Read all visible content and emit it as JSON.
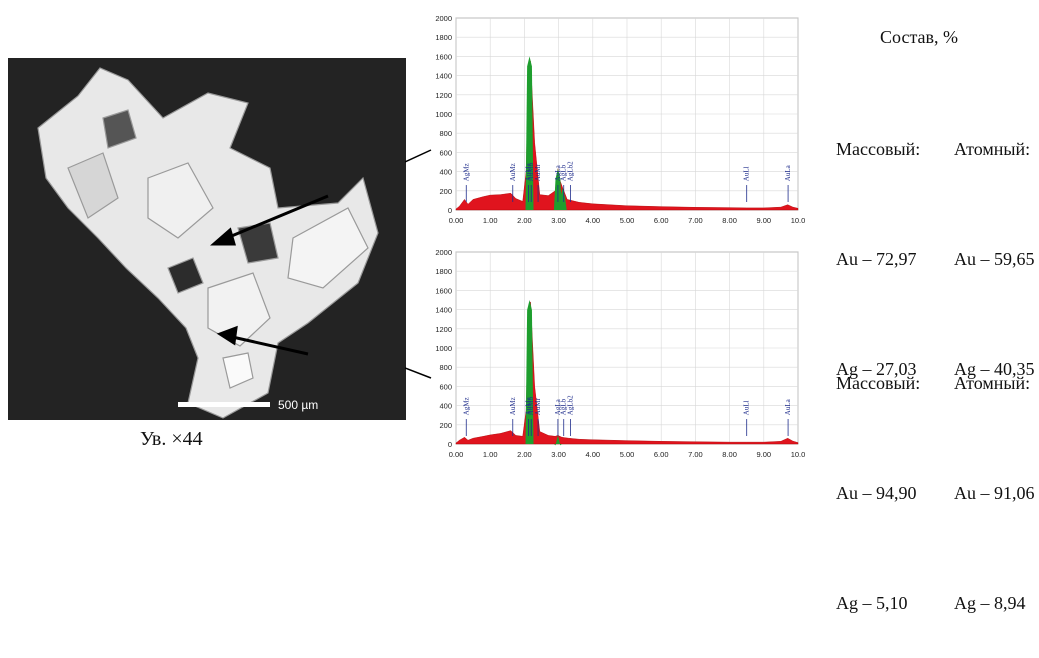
{
  "micrograph": {
    "scalebar_label": "500 µm",
    "caption": "Ув. ×44"
  },
  "composition": {
    "title": "Состав, %",
    "header": [
      "Массовый:",
      "Атомный:"
    ],
    "spectrum1": [
      [
        "Au – 72,97",
        "Au – 59,65"
      ],
      [
        "Ag – 27,03",
        "Ag – 40,35"
      ]
    ],
    "spectrum2": [
      [
        "Au – 94,90",
        "Au – 91,06"
      ],
      [
        "Ag – 5,10",
        "Ag – 8,94"
      ]
    ]
  },
  "colors": {
    "spectrum_fill": "#e0141e",
    "peak_fill": "#1e9e2e",
    "peak_label": "#1f2d8c",
    "background_micro": "#232323"
  },
  "chart_data": [
    {
      "type": "area",
      "xlim": [
        0.0,
        10.0
      ],
      "ylim": [
        0,
        2000
      ],
      "x_ticks": [
        "0.00",
        "1.00",
        "2.00",
        "3.00",
        "4.00",
        "5.00",
        "6.00",
        "7.00",
        "8.00",
        "9.00",
        "10.0"
      ],
      "y_ticks": [
        "0",
        "200",
        "400",
        "600",
        "800",
        "1000",
        "1200",
        "1400",
        "1600",
        "1800",
        "2000"
      ],
      "peak_labels": [
        {
          "label": "AgMz",
          "x": 0.3
        },
        {
          "label": "AuMz",
          "x": 1.66
        },
        {
          "label": "AuMa",
          "x": 2.12
        },
        {
          "label": "AuMb",
          "x": 2.2
        },
        {
          "label": "AuMr",
          "x": 2.4
        },
        {
          "label": "AgLa",
          "x": 2.98
        },
        {
          "label": "AgLb",
          "x": 3.15
        },
        {
          "label": "AgLb2",
          "x": 3.35
        },
        {
          "label": "AuLl",
          "x": 8.5
        },
        {
          "label": "AuLa",
          "x": 9.71
        }
      ],
      "green_peaks": [
        {
          "x": 2.15,
          "y": 1600
        },
        {
          "x": 2.98,
          "y": 430
        },
        {
          "x": 3.12,
          "y": 230
        }
      ],
      "spectrum": [
        [
          0.0,
          10
        ],
        [
          0.1,
          40
        ],
        [
          0.25,
          110
        ],
        [
          0.35,
          60
        ],
        [
          0.5,
          110
        ],
        [
          0.8,
          140
        ],
        [
          1.0,
          155
        ],
        [
          1.3,
          160
        ],
        [
          1.6,
          175
        ],
        [
          1.75,
          120
        ],
        [
          1.95,
          90
        ],
        [
          2.05,
          400
        ],
        [
          2.12,
          1500
        ],
        [
          2.18,
          1550
        ],
        [
          2.3,
          700
        ],
        [
          2.45,
          160
        ],
        [
          2.7,
          150
        ],
        [
          2.9,
          200
        ],
        [
          2.98,
          430
        ],
        [
          3.05,
          300
        ],
        [
          3.12,
          230
        ],
        [
          3.25,
          110
        ],
        [
          3.6,
          80
        ],
        [
          4.0,
          65
        ],
        [
          5.0,
          45
        ],
        [
          6.0,
          35
        ],
        [
          7.0,
          28
        ],
        [
          8.0,
          25
        ],
        [
          8.5,
          22
        ],
        [
          9.0,
          22
        ],
        [
          9.5,
          30
        ],
        [
          9.7,
          55
        ],
        [
          9.85,
          30
        ],
        [
          10.0,
          18
        ]
      ]
    },
    {
      "type": "area",
      "xlim": [
        0.0,
        10.0
      ],
      "ylim": [
        0,
        2000
      ],
      "x_ticks": [
        "0.00",
        "1.00",
        "2.00",
        "3.00",
        "4.00",
        "5.00",
        "6.00",
        "7.00",
        "8.00",
        "9.00",
        "10.0"
      ],
      "y_ticks": [
        "0",
        "200",
        "400",
        "600",
        "800",
        "1000",
        "1200",
        "1400",
        "1600",
        "1800",
        "2000"
      ],
      "peak_labels": [
        {
          "label": "AgMz",
          "x": 0.3
        },
        {
          "label": "AuMz",
          "x": 1.66
        },
        {
          "label": "AuMa",
          "x": 2.12
        },
        {
          "label": "AuMb",
          "x": 2.2
        },
        {
          "label": "AuMr",
          "x": 2.4
        },
        {
          "label": "AgLa",
          "x": 2.98
        },
        {
          "label": "AgLb",
          "x": 3.15
        },
        {
          "label": "AgLb2",
          "x": 3.35
        },
        {
          "label": "AuLl",
          "x": 8.5
        },
        {
          "label": "AuLa",
          "x": 9.71
        }
      ],
      "green_peaks": [
        {
          "x": 2.15,
          "y": 1500
        },
        {
          "x": 2.98,
          "y": 90
        }
      ],
      "spectrum": [
        [
          0.0,
          10
        ],
        [
          0.1,
          40
        ],
        [
          0.25,
          70
        ],
        [
          0.35,
          40
        ],
        [
          0.5,
          60
        ],
        [
          0.8,
          80
        ],
        [
          1.0,
          95
        ],
        [
          1.3,
          110
        ],
        [
          1.6,
          140
        ],
        [
          1.75,
          90
        ],
        [
          1.95,
          80
        ],
        [
          2.05,
          350
        ],
        [
          2.12,
          1420
        ],
        [
          2.18,
          1480
        ],
        [
          2.3,
          600
        ],
        [
          2.45,
          130
        ],
        [
          2.7,
          90
        ],
        [
          2.9,
          80
        ],
        [
          2.98,
          90
        ],
        [
          3.1,
          70
        ],
        [
          3.3,
          60
        ],
        [
          3.6,
          50
        ],
        [
          4.0,
          45
        ],
        [
          5.0,
          35
        ],
        [
          6.0,
          28
        ],
        [
          7.0,
          24
        ],
        [
          8.0,
          20
        ],
        [
          8.5,
          20
        ],
        [
          9.0,
          20
        ],
        [
          9.5,
          28
        ],
        [
          9.7,
          60
        ],
        [
          9.85,
          30
        ],
        [
          10.0,
          15
        ]
      ]
    }
  ]
}
